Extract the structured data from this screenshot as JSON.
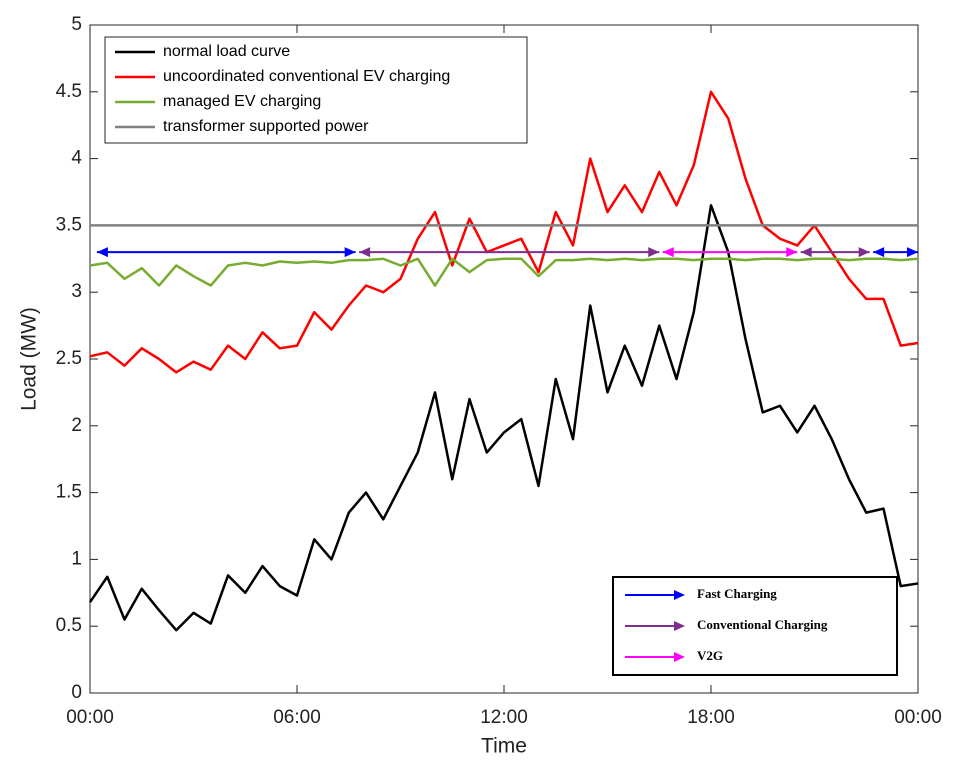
{
  "chart_data": {
    "type": "line",
    "xlabel": "Time",
    "ylabel": "Load (MW)",
    "x": [
      0,
      0.5,
      1,
      1.5,
      2,
      2.5,
      3,
      3.5,
      4,
      4.5,
      5,
      5.5,
      6,
      6.5,
      7,
      7.5,
      8,
      8.5,
      9,
      9.5,
      10,
      10.5,
      11,
      11.5,
      12,
      12.5,
      13,
      13.5,
      14,
      14.5,
      15,
      15.5,
      16,
      16.5,
      17,
      17.5,
      18,
      18.5,
      19,
      19.5,
      20,
      20.5,
      21,
      21.5,
      22,
      22.5,
      23,
      23.5,
      24
    ],
    "series": [
      {
        "name": "normal load curve",
        "color": "#000000",
        "values": [
          0.68,
          0.87,
          0.55,
          0.78,
          0.62,
          0.47,
          0.6,
          0.52,
          0.88,
          0.75,
          0.95,
          0.8,
          0.73,
          1.15,
          1.0,
          1.35,
          1.5,
          1.3,
          1.55,
          1.8,
          2.25,
          1.6,
          2.2,
          1.8,
          1.95,
          2.05,
          1.55,
          2.35,
          1.9,
          2.9,
          2.25,
          2.6,
          2.3,
          2.75,
          2.35,
          2.85,
          3.65,
          3.3,
          2.65,
          2.1,
          2.15,
          1.95,
          2.15,
          1.9,
          1.6,
          1.35,
          1.38,
          0.8,
          0.82
        ]
      },
      {
        "name": "uncoordinated conventional EV charging",
        "color": "#ff0000",
        "values": [
          2.52,
          2.55,
          2.45,
          2.58,
          2.5,
          2.4,
          2.48,
          2.42,
          2.6,
          2.5,
          2.7,
          2.58,
          2.6,
          2.85,
          2.72,
          2.9,
          3.05,
          3.0,
          3.1,
          3.4,
          3.6,
          3.2,
          3.55,
          3.3,
          3.35,
          3.4,
          3.15,
          3.6,
          3.35,
          4.0,
          3.6,
          3.8,
          3.6,
          3.9,
          3.65,
          3.95,
          4.5,
          4.3,
          3.85,
          3.5,
          3.4,
          3.35,
          3.5,
          3.3,
          3.1,
          2.95,
          2.95,
          2.6,
          2.62
        ]
      },
      {
        "name": "managed EV charging",
        "color": "#77ac30",
        "values": [
          3.2,
          3.22,
          3.1,
          3.18,
          3.05,
          3.2,
          3.12,
          3.05,
          3.2,
          3.22,
          3.2,
          3.23,
          3.22,
          3.23,
          3.22,
          3.24,
          3.24,
          3.25,
          3.2,
          3.25,
          3.05,
          3.25,
          3.15,
          3.24,
          3.25,
          3.25,
          3.12,
          3.24,
          3.24,
          3.25,
          3.24,
          3.25,
          3.24,
          3.25,
          3.25,
          3.24,
          3.25,
          3.25,
          3.24,
          3.25,
          3.25,
          3.24,
          3.25,
          3.25,
          3.24,
          3.25,
          3.25,
          3.24,
          3.25
        ]
      },
      {
        "name": "transformer supported power",
        "color": "#808080",
        "x": [
          0,
          24
        ],
        "values": [
          3.5,
          3.5
        ]
      }
    ],
    "legend_loc": "upper left",
    "modes": [
      {
        "name": "Fast Charging",
        "color": "#0000ff",
        "periods": [
          [
            0.2,
            7.7
          ],
          [
            22.7,
            24
          ]
        ]
      },
      {
        "name": "Conventional Charging",
        "color": "#7e2f8e",
        "periods": [
          [
            7.8,
            16.5
          ],
          [
            20.6,
            22.6
          ]
        ]
      },
      {
        "name": "V2G",
        "color": "#ff00ff",
        "periods": [
          [
            16.6,
            20.5
          ]
        ]
      }
    ],
    "arrow_y": 3.3,
    "modes_legend_loc": "lower right",
    "xlim": [
      0,
      24
    ],
    "xticks": [
      {
        "value": 0,
        "label": "00:00"
      },
      {
        "value": 6,
        "label": "06:00"
      },
      {
        "value": 12,
        "label": "12:00"
      },
      {
        "value": 18,
        "label": "18:00"
      },
      {
        "value": 24,
        "label": "00:00"
      }
    ],
    "ylim": [
      0,
      5
    ],
    "yticks": [
      0,
      0.5,
      1,
      1.5,
      2,
      2.5,
      3,
      3.5,
      4,
      4.5,
      5
    ],
    "grid": false
  }
}
